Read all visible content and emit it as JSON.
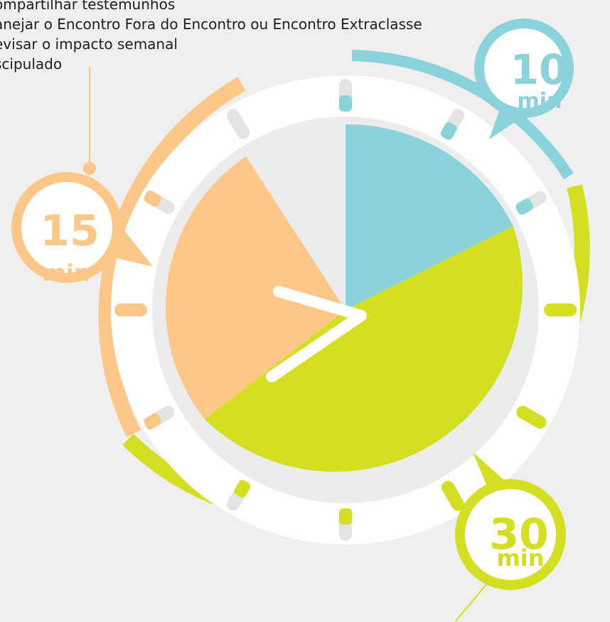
{
  "agenda": {
    "lines": [
      "ompartilhar  testemunhos",
      "anejar o Encontro Fora do Encontro ou Encontro  Extraclasse",
      "evisar o impacto semanal",
      "scipulado"
    ]
  },
  "segments": [
    {
      "id": "blue",
      "minutes": "10",
      "unit": "min",
      "color": "#8ad3db"
    },
    {
      "id": "orange",
      "minutes": "15",
      "unit": "min",
      "color": "#fdc887"
    },
    {
      "id": "green",
      "minutes": "30",
      "unit": "min",
      "color": "#d4df22"
    }
  ],
  "colors": {
    "background": "#efefef",
    "clock_ring": "#ffffff",
    "clock_face": "#ececec",
    "tick": "#e4e4e4",
    "label_text": "#1e1e1e"
  }
}
